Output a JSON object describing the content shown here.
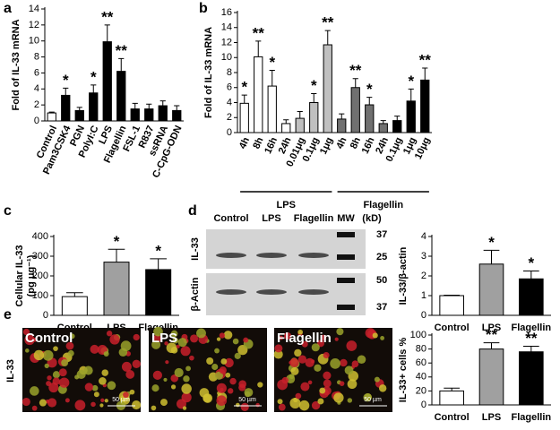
{
  "chart_data": [
    {
      "type": "bar",
      "panel": "a",
      "ylabel": "Fold of IL-33 mRNA",
      "categories": [
        "Control",
        "Pam3CSK4",
        "PGN",
        "PolyI:C",
        "LPS",
        "Flagellin",
        "FSL-1",
        "R837",
        "ssRNA",
        "C-CpG-ODN"
      ],
      "values": [
        1,
        3.2,
        1.3,
        3.5,
        9.9,
        6.2,
        1.5,
        1.5,
        1.9,
        1.3
      ],
      "errors": [
        0.1,
        0.9,
        0.4,
        1.0,
        2.1,
        1.6,
        0.7,
        0.6,
        0.6,
        0.6
      ],
      "colors": [
        "#ffffff",
        "#000000",
        "#000000",
        "#000000",
        "#000000",
        "#000000",
        "#000000",
        "#000000",
        "#000000",
        "#000000"
      ],
      "significance": [
        null,
        "*",
        null,
        "*",
        "**",
        "**",
        null,
        null,
        null,
        null
      ],
      "ylim": [
        0,
        14
      ],
      "yticks": [
        0,
        2,
        4,
        6,
        8,
        10,
        12,
        14
      ]
    },
    {
      "type": "bar",
      "panel": "b",
      "ylabel": "Fold of IL-33 mRNA",
      "categories": [
        "4h",
        "8h",
        "16h",
        "24h",
        "0.01μg",
        "0.1μg",
        "1μg",
        "4h",
        "8h",
        "16h",
        "24h",
        "0.1μg",
        "1μg",
        "10μg"
      ],
      "values": [
        3.9,
        10.1,
        6.2,
        1.2,
        1.9,
        4.0,
        11.7,
        1.8,
        6.0,
        3.7,
        1.2,
        1.6,
        4.2,
        7.0
      ],
      "errors": [
        1.1,
        2.1,
        2.1,
        0.5,
        0.9,
        1.2,
        1.9,
        0.7,
        1.2,
        1.0,
        0.4,
        0.6,
        1.6,
        1.6
      ],
      "colors": [
        "#ffffff",
        "#ffffff",
        "#ffffff",
        "#ffffff",
        "#c0c0c0",
        "#c0c0c0",
        "#c0c0c0",
        "#707070",
        "#707070",
        "#707070",
        "#707070",
        "#000000",
        "#000000",
        "#000000"
      ],
      "significance": [
        "*",
        "**",
        "*",
        null,
        null,
        "*",
        "**",
        null,
        "**",
        "*",
        null,
        null,
        "*",
        "**"
      ],
      "groups": [
        {
          "name": "LPS",
          "start": 0,
          "end": 6
        },
        {
          "name": "Flagellin",
          "start": 7,
          "end": 13
        }
      ],
      "ylim": [
        0,
        16
      ],
      "yticks": [
        0,
        2,
        4,
        6,
        8,
        10,
        12,
        14,
        16
      ]
    },
    {
      "type": "bar",
      "panel": "c",
      "ylabel": [
        "Cellular IL-33",
        "(pg μg⁻¹)"
      ],
      "categories": [
        "Control",
        "LPS",
        "Flagellin"
      ],
      "values": [
        95,
        270,
        232
      ],
      "errors": [
        20,
        65,
        55
      ],
      "colors": [
        "#ffffff",
        "#a0a0a0",
        "#000000"
      ],
      "significance": [
        null,
        "*",
        "*"
      ],
      "ylim": [
        0,
        400
      ],
      "yticks": [
        0,
        100,
        200,
        300,
        400
      ]
    },
    {
      "type": "bar",
      "ylabel": "IL-33/β-actin",
      "categories": [
        "Control",
        "LPS",
        "Flagellin"
      ],
      "values": [
        1,
        2.6,
        1.85
      ],
      "errors": [
        0.02,
        0.7,
        0.4
      ],
      "colors": [
        "#ffffff",
        "#a0a0a0",
        "#000000"
      ],
      "significance": [
        null,
        "*",
        "*"
      ],
      "ylim": [
        0,
        4
      ],
      "yticks": [
        0,
        1,
        2,
        3,
        4
      ]
    },
    {
      "type": "bar",
      "ylabel": "IL-33+ cells %",
      "categories": [
        "Control",
        "LPS",
        "Flagellin"
      ],
      "values": [
        20,
        80,
        76
      ],
      "errors": [
        4,
        9,
        8
      ],
      "colors": [
        "#ffffff",
        "#a0a0a0",
        "#000000"
      ],
      "significance": [
        null,
        "**",
        "**"
      ],
      "ylim": [
        0,
        100
      ],
      "yticks": [
        0,
        20,
        40,
        60,
        80,
        100
      ]
    }
  ],
  "blot": {
    "panel": "d",
    "lanes": [
      "Control",
      "LPS",
      "Flagellin",
      "MW"
    ],
    "unit": "(kD)",
    "rows": [
      "IL-33",
      "β-Actin"
    ],
    "markers": [
      "37",
      "25",
      "50",
      "37"
    ]
  },
  "images": {
    "panel": "e",
    "titles": [
      "Control",
      "LPS",
      "Flagellin"
    ],
    "row_label": "IL-33",
    "scale_bar": "50 µm"
  }
}
